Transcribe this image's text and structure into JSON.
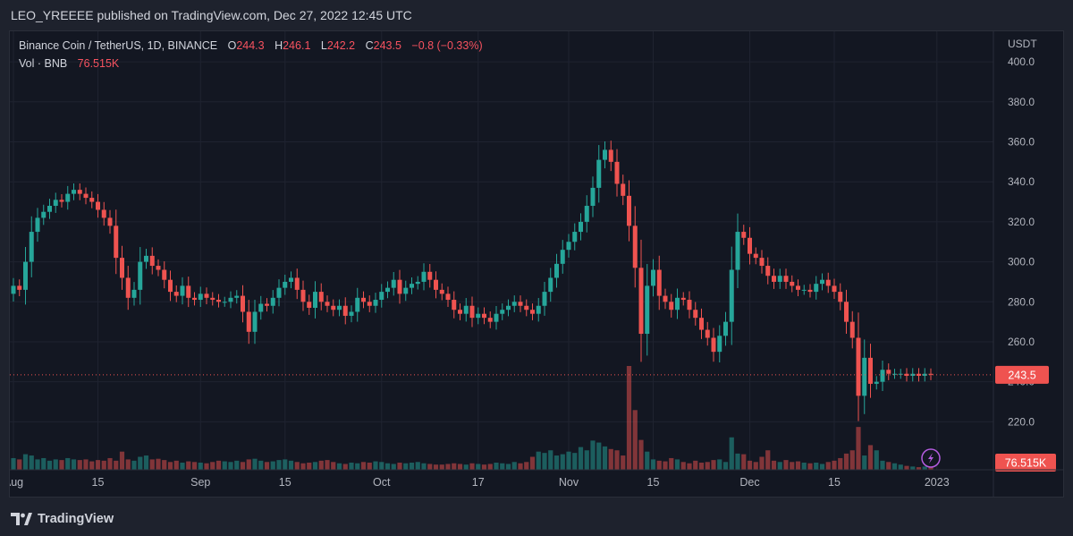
{
  "header": {
    "publisher_text": "LEO_YREEEE published on TradingView.com, Dec 27, 2022 12:45 UTC"
  },
  "legend": {
    "symbol": "Binance Coin / TetherUS, 1D, BINANCE",
    "o_label": "O",
    "o_value": "244.3",
    "h_label": "H",
    "h_value": "246.1",
    "l_label": "L",
    "l_value": "242.2",
    "c_label": "C",
    "c_value": "243.5",
    "change": "−0.8 (−0.33%)",
    "vol_label": "Vol · BNB",
    "vol_value": "76.515K"
  },
  "footer": {
    "brand": "TradingView"
  },
  "colors": {
    "up": "#26a69a",
    "down": "#ef5350",
    "background": "#131722",
    "grid": "#1f2330"
  },
  "icons": {
    "logo": "tradingview-logo-icon",
    "lightning": "lightning-icon"
  },
  "chart_data": {
    "type": "candlestick",
    "quote_currency": "USDT",
    "y_ticks": [
      220,
      240,
      260,
      280,
      300,
      320,
      340,
      360,
      380,
      400
    ],
    "y_tick_labels": [
      "220.0",
      "240.0",
      "260.0",
      "280.0",
      "300.0",
      "320.0",
      "340.0",
      "360.0",
      "380.0",
      "400.0"
    ],
    "ylim": [
      196,
      409
    ],
    "x_labels": [
      {
        "label": "Aug",
        "day_index": 0
      },
      {
        "label": "15",
        "day_index": 14
      },
      {
        "label": "Sep",
        "day_index": 31
      },
      {
        "label": "15",
        "day_index": 45
      },
      {
        "label": "Oct",
        "day_index": 61
      },
      {
        "label": "17",
        "day_index": 77
      },
      {
        "label": "Nov",
        "day_index": 92
      },
      {
        "label": "15",
        "day_index": 106
      },
      {
        "label": "Dec",
        "day_index": 122
      },
      {
        "label": "15",
        "day_index": 136
      },
      {
        "label": "2023",
        "day_index": 153
      }
    ],
    "last_price": 243.5,
    "last_price_label": "243.5",
    "last_volume_label": "76.515K",
    "close": [
      288,
      286,
      300,
      315,
      322,
      325,
      328,
      331,
      330,
      334,
      336,
      334,
      332,
      330,
      326,
      322,
      318,
      302,
      292,
      282,
      286,
      300,
      303,
      298,
      296,
      291,
      285,
      283,
      288,
      282,
      281,
      284,
      282,
      281,
      280,
      280,
      282,
      283,
      275,
      265,
      275,
      279,
      278,
      282,
      287,
      290,
      292,
      286,
      280,
      277,
      285,
      280,
      278,
      276,
      278,
      273,
      275,
      282,
      280,
      278,
      281,
      285,
      287,
      291,
      284,
      287,
      289,
      290,
      295,
      291,
      286,
      284,
      281,
      276,
      274,
      278,
      272,
      274,
      272,
      270,
      274,
      276,
      278,
      280,
      278,
      276,
      274,
      278,
      285,
      292,
      299,
      306,
      310,
      315,
      320,
      328,
      337,
      351,
      356,
      350,
      339,
      333,
      318,
      297,
      264,
      288,
      296,
      283,
      280,
      276,
      282,
      281,
      276,
      272,
      266,
      262,
      255,
      263,
      270,
      296,
      315,
      312,
      304,
      302,
      298,
      293,
      290,
      293,
      290,
      288,
      286,
      286,
      285,
      289,
      291,
      288,
      285,
      280,
      270,
      262,
      233,
      252,
      239,
      240,
      246,
      244,
      244,
      244,
      243,
      244,
      243,
      244,
      243.5
    ],
    "volume": [
      18,
      16,
      24,
      22,
      16,
      18,
      14,
      16,
      15,
      18,
      16,
      15,
      16,
      13,
      15,
      14,
      18,
      14,
      28,
      16,
      14,
      20,
      22,
      16,
      17,
      15,
      12,
      14,
      11,
      13,
      12,
      11,
      10,
      12,
      14,
      13,
      12,
      14,
      12,
      16,
      17,
      14,
      12,
      13,
      15,
      16,
      14,
      12,
      10,
      11,
      12,
      14,
      15,
      12,
      10,
      9,
      11,
      10,
      12,
      11,
      13,
      12,
      10,
      9,
      11,
      10,
      11,
      12,
      10,
      9,
      8,
      8,
      9,
      10,
      9,
      8,
      10,
      9,
      8,
      9,
      11,
      10,
      9,
      12,
      10,
      12,
      20,
      28,
      26,
      30,
      22,
      24,
      28,
      26,
      35,
      30,
      45,
      42,
      36,
      32,
      30,
      22,
      160,
      92,
      46,
      28,
      16,
      14,
      13,
      18,
      16,
      12,
      10,
      14,
      11,
      12,
      15,
      16,
      12,
      50,
      25,
      24,
      14,
      12,
      20,
      30,
      14,
      12,
      15,
      12,
      13,
      11,
      10,
      11,
      9,
      12,
      14,
      18,
      25,
      30,
      66,
      22,
      38,
      30,
      14,
      12,
      10,
      8,
      6,
      5,
      4,
      5,
      6
    ]
  }
}
